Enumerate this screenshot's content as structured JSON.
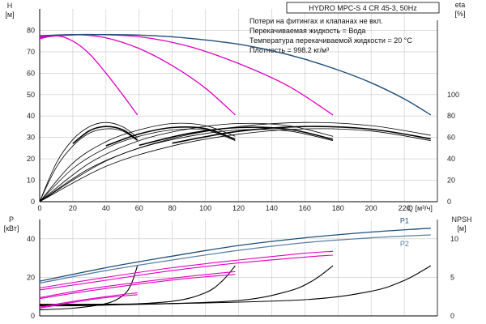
{
  "colors": {
    "head_envelope": "#1f4e79",
    "efficiency": "#e000c0",
    "pump_curves": "#000000",
    "power_p1": "#1f4e79",
    "power_p2": "#5b7fa6",
    "grid": "#c8c8c8"
  },
  "chart_data": [
    {
      "type": "line",
      "name": "top",
      "title": "HYDRO MPC-S 4 CR 45-3, 50Hz",
      "notes": [
        "Потери на фитингах и клапанах не вкл.",
        "Перекачиваемая жидкость = Вода",
        "Температура перекачиваемой жидкости = 20 °C",
        "Плотность = 998.2 кг/м³"
      ],
      "xlabel": "Q [м³/ч]",
      "ylabel_left": "H\n[м]",
      "ylabel_right": "eta\n[%]",
      "xlim": [
        0,
        240
      ],
      "ylim_left": [
        0,
        90
      ],
      "ylim_right_ticks": [
        0,
        20,
        40,
        60,
        80,
        100
      ],
      "xticks": [
        0,
        20,
        40,
        60,
        80,
        100,
        120,
        140,
        160,
        180,
        200,
        220
      ],
      "yticks_left": [
        0,
        10,
        20,
        30,
        40,
        50,
        60,
        70,
        80
      ],
      "grid": true,
      "head_curves": [
        {
          "x": [
            0,
            20,
            40,
            60,
            80,
            100,
            120,
            140,
            160,
            180,
            200,
            220,
            236
          ],
          "y": [
            77.5,
            78,
            78,
            77.8,
            77,
            75.5,
            73.5,
            70.5,
            66.5,
            61.5,
            55.5,
            48,
            40.5
          ]
        }
      ],
      "efficiency_like_head": [
        {
          "x": [
            0,
            10,
            20,
            30,
            40,
            50,
            59
          ],
          "y": [
            76,
            77.5,
            75,
            69,
            60,
            50,
            40.5
          ]
        },
        {
          "x": [
            0,
            20,
            40,
            60,
            80,
            100,
            118
          ],
          "y": [
            76.5,
            78,
            76.5,
            71.5,
            63.5,
            53,
            40.5
          ]
        },
        {
          "x": [
            0,
            30,
            60,
            90,
            120,
            150,
            177
          ],
          "y": [
            77,
            78,
            77,
            72.5,
            64.5,
            54,
            40.5
          ]
        }
      ],
      "pump_efficiency_curves": [
        {
          "x": [
            0,
            10,
            20,
            30,
            40,
            50,
            59
          ],
          "y": [
            0,
            18,
            29,
            35,
            37,
            35,
            30
          ]
        },
        {
          "x": [
            0,
            10,
            20,
            30,
            40,
            50,
            59
          ],
          "y": [
            0,
            16,
            26,
            32,
            34,
            33,
            28.5
          ]
        },
        {
          "x": [
            0,
            20,
            40,
            60,
            80,
            100,
            118
          ],
          "y": [
            0,
            18,
            28,
            33.5,
            36.5,
            35.5,
            30.5
          ]
        },
        {
          "x": [
            0,
            20,
            40,
            60,
            80,
            100,
            118
          ],
          "y": [
            0,
            15.5,
            25,
            30.5,
            33.5,
            33.5,
            28.5
          ]
        },
        {
          "x": [
            0,
            30,
            60,
            90,
            120,
            150,
            177
          ],
          "y": [
            0,
            18,
            28.5,
            34,
            36.5,
            35.5,
            30.5
          ]
        },
        {
          "x": [
            0,
            30,
            60,
            90,
            120,
            150,
            177
          ],
          "y": [
            0,
            15.5,
            25,
            30.5,
            33.5,
            33,
            28.5
          ]
        },
        {
          "x": [
            0,
            40,
            80,
            120,
            160,
            200,
            236
          ],
          "y": [
            0,
            19,
            29.5,
            35,
            37,
            35.5,
            31
          ]
        },
        {
          "x": [
            0,
            40,
            80,
            120,
            160,
            200,
            236
          ],
          "y": [
            0,
            16.5,
            26,
            31.5,
            34,
            33,
            28.5
          ]
        }
      ]
    },
    {
      "type": "line",
      "name": "bottom",
      "xlim": [
        0,
        240
      ],
      "ylabel_left": "P\n[кВт]",
      "ylabel_right": "NPSH\n[м]",
      "ylim_left": [
        0,
        50
      ],
      "yticks_left": [
        0,
        20,
        40
      ],
      "yticks_right": [
        0,
        5,
        10
      ],
      "ylim_right": [
        0,
        12.5
      ],
      "grid": true,
      "series": [
        {
          "name": "P1",
          "x": [
            0,
            40,
            80,
            120,
            160,
            200,
            236
          ],
          "y": [
            18,
            25,
            31,
            36.5,
            40.5,
            43.5,
            45.5
          ]
        },
        {
          "name": "P2",
          "x": [
            0,
            40,
            80,
            120,
            160,
            200,
            236
          ],
          "y": [
            17,
            23.5,
            29,
            34,
            38,
            40.5,
            42
          ]
        }
      ],
      "power_magenta": [
        {
          "x": [
            0,
            40,
            80,
            120,
            160,
            177
          ],
          "y": [
            14.5,
            20,
            25,
            29,
            32.5,
            33.5
          ]
        },
        {
          "x": [
            0,
            40,
            80,
            120,
            160,
            177
          ],
          "y": [
            13.5,
            18.5,
            23.5,
            27.5,
            30.5,
            31.5
          ]
        },
        {
          "x": [
            0,
            30,
            60,
            90,
            118
          ],
          "y": [
            9.5,
            14,
            17.5,
            20.5,
            23
          ]
        },
        {
          "x": [
            0,
            30,
            60,
            90,
            118
          ],
          "y": [
            9,
            13,
            16.5,
            19.5,
            21.5
          ]
        },
        {
          "x": [
            0,
            20,
            40,
            59
          ],
          "y": [
            4.5,
            7.5,
            10,
            12
          ]
        },
        {
          "x": [
            0,
            20,
            40,
            59
          ],
          "y": [
            4,
            7,
            9.5,
            11
          ]
        }
      ],
      "npsh_curves": [
        {
          "x": [
            0,
            20,
            40,
            50,
            55,
            59
          ],
          "y": [
            0.8,
            1.0,
            1.6,
            2.6,
            4.0,
            6.5
          ]
        },
        {
          "x": [
            0,
            40,
            80,
            100,
            110,
            118
          ],
          "y": [
            1.3,
            1.4,
            1.9,
            3.0,
            4.5,
            6.5
          ]
        },
        {
          "x": [
            0,
            60,
            120,
            150,
            165,
            177
          ],
          "y": [
            1.4,
            1.5,
            2.0,
            3.2,
            4.6,
            6.5
          ]
        },
        {
          "x": [
            0,
            80,
            160,
            200,
            220,
            236
          ],
          "y": [
            1.5,
            1.6,
            2.1,
            3.2,
            4.6,
            6.5
          ]
        }
      ]
    }
  ]
}
